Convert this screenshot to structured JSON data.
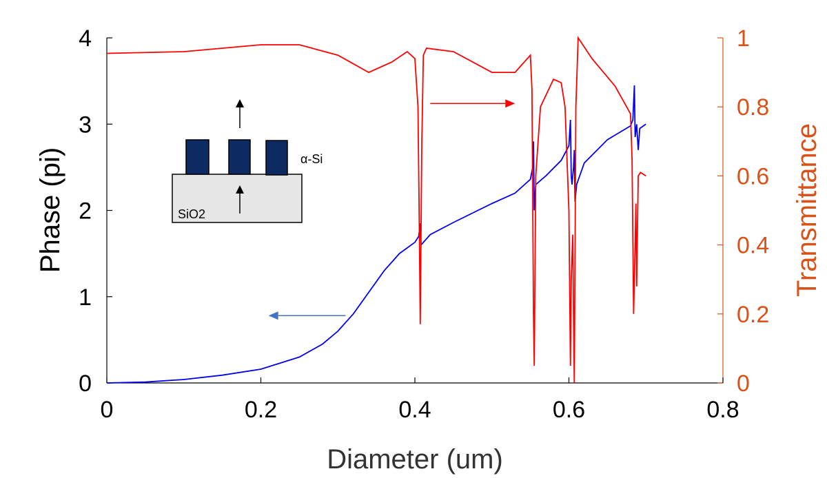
{
  "colors": {
    "phase": "#0000ee",
    "transmittance": "#ff0000",
    "right_axis": "#d95319",
    "pillar": "#0d2a63",
    "substrate": "#e6e6e6",
    "arrow_left": "#4472c4"
  },
  "chart_data": {
    "type": "line",
    "xlabel": "Diameter (um)",
    "ylabel": "Phase (pi)",
    "y2label": "Transmittance",
    "xlim": [
      0,
      0.8
    ],
    "ylim": [
      0,
      4
    ],
    "y2lim": [
      0,
      1
    ],
    "xticks": [
      "0",
      "0.2",
      "0.4",
      "0.6",
      "0.8"
    ],
    "yticks": [
      "0",
      "1",
      "2",
      "3",
      "4"
    ],
    "y2ticks": [
      "0",
      "0.2",
      "0.4",
      "0.6",
      "0.8",
      "1"
    ],
    "grid": false,
    "series": [
      {
        "axis": "left",
        "color": "#0000ee",
        "points": [
          [
            0,
            0
          ],
          [
            0.05,
            0.01
          ],
          [
            0.1,
            0.04
          ],
          [
            0.15,
            0.09
          ],
          [
            0.2,
            0.16
          ],
          [
            0.25,
            0.3
          ],
          [
            0.28,
            0.45
          ],
          [
            0.3,
            0.6
          ],
          [
            0.32,
            0.8
          ],
          [
            0.34,
            1.05
          ],
          [
            0.36,
            1.3
          ],
          [
            0.38,
            1.5
          ],
          [
            0.4,
            1.63
          ],
          [
            0.405,
            1.7
          ],
          [
            0.407,
            1.85
          ],
          [
            0.408,
            1.6
          ],
          [
            0.41,
            1.62
          ],
          [
            0.42,
            1.72
          ],
          [
            0.45,
            1.86
          ],
          [
            0.5,
            2.08
          ],
          [
            0.53,
            2.2
          ],
          [
            0.55,
            2.36
          ],
          [
            0.553,
            2.5
          ],
          [
            0.554,
            2.8
          ],
          [
            0.555,
            2.0
          ],
          [
            0.557,
            2.3
          ],
          [
            0.57,
            2.4
          ],
          [
            0.59,
            2.58
          ],
          [
            0.6,
            2.75
          ],
          [
            0.602,
            3.05
          ],
          [
            0.603,
            2.4
          ],
          [
            0.604,
            2.3
          ],
          [
            0.606,
            2.5
          ],
          [
            0.607,
            2.7
          ],
          [
            0.608,
            2.1
          ],
          [
            0.61,
            2.3
          ],
          [
            0.62,
            2.55
          ],
          [
            0.65,
            2.82
          ],
          [
            0.68,
            2.98
          ],
          [
            0.683,
            3.05
          ],
          [
            0.685,
            3.45
          ],
          [
            0.686,
            2.85
          ],
          [
            0.688,
            3.0
          ],
          [
            0.69,
            2.7
          ],
          [
            0.692,
            2.95
          ],
          [
            0.7,
            3.0
          ]
        ]
      },
      {
        "axis": "right",
        "color": "#ff0000",
        "points": [
          [
            0,
            0.955
          ],
          [
            0.1,
            0.96
          ],
          [
            0.2,
            0.98
          ],
          [
            0.25,
            0.98
          ],
          [
            0.3,
            0.95
          ],
          [
            0.34,
            0.9
          ],
          [
            0.37,
            0.93
          ],
          [
            0.39,
            0.96
          ],
          [
            0.4,
            0.94
          ],
          [
            0.404,
            0.8
          ],
          [
            0.406,
            0.4
          ],
          [
            0.407,
            0.17
          ],
          [
            0.409,
            0.7
          ],
          [
            0.411,
            0.95
          ],
          [
            0.415,
            0.97
          ],
          [
            0.45,
            0.96
          ],
          [
            0.5,
            0.9
          ],
          [
            0.53,
            0.9
          ],
          [
            0.55,
            0.95
          ],
          [
            0.552,
            0.85
          ],
          [
            0.554,
            0.2
          ],
          [
            0.555,
            0.05
          ],
          [
            0.557,
            0.6
          ],
          [
            0.563,
            0.8
          ],
          [
            0.58,
            0.88
          ],
          [
            0.59,
            0.87
          ],
          [
            0.595,
            0.8
          ],
          [
            0.6,
            0.5
          ],
          [
            0.602,
            0.05
          ],
          [
            0.603,
            0.3
          ],
          [
            0.605,
            0.43
          ],
          [
            0.606,
            0.2
          ],
          [
            0.607,
            0.0
          ],
          [
            0.609,
            0.8
          ],
          [
            0.612,
            1.0
          ],
          [
            0.615,
            0.99
          ],
          [
            0.63,
            0.94
          ],
          [
            0.66,
            0.86
          ],
          [
            0.675,
            0.8
          ],
          [
            0.68,
            0.78
          ],
          [
            0.682,
            0.65
          ],
          [
            0.684,
            0.2
          ],
          [
            0.686,
            0.4
          ],
          [
            0.687,
            0.52
          ],
          [
            0.688,
            0.28
          ],
          [
            0.69,
            0.6
          ],
          [
            0.693,
            0.61
          ],
          [
            0.7,
            0.6
          ]
        ]
      }
    ],
    "annotations": [
      {
        "type": "arrow",
        "direction": "left",
        "from": [
          0.31,
          0.195
        ],
        "to": [
          0.21,
          0.195
        ],
        "color": "#4472c4"
      },
      {
        "type": "arrow",
        "direction": "right",
        "from": [
          0.42,
          0.81
        ],
        "to": [
          0.53,
          0.81
        ],
        "color": "#ff0000"
      }
    ]
  },
  "inset": {
    "material_top": "α-Si",
    "material_bottom": "SiO2"
  }
}
